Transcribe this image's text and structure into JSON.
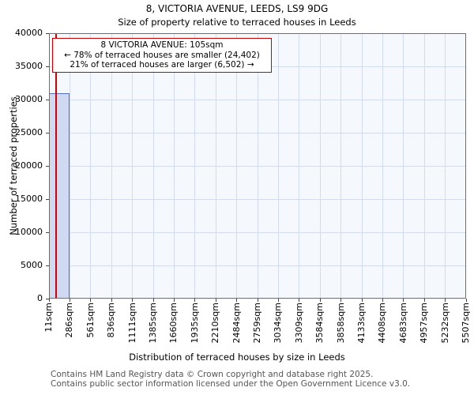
{
  "chart_data": {
    "type": "bar",
    "title": "8, VICTORIA AVENUE, LEEDS, LS9 9DG",
    "subtitle": "Size of property relative to terraced houses in Leeds",
    "xlabel": "Distribution of terraced houses by size in Leeds",
    "ylabel": "Number of terraced properties",
    "ylim": [
      0,
      40000
    ],
    "y_ticks": [
      0,
      5000,
      10000,
      15000,
      20000,
      25000,
      30000,
      35000,
      40000
    ],
    "x_range": [
      11,
      5507
    ],
    "x_tick_labels": [
      "11sqm",
      "286sqm",
      "561sqm",
      "836sqm",
      "1111sqm",
      "1385sqm",
      "1660sqm",
      "1935sqm",
      "2210sqm",
      "2484sqm",
      "2759sqm",
      "3034sqm",
      "3309sqm",
      "3584sqm",
      "3858sqm",
      "4133sqm",
      "4408sqm",
      "4683sqm",
      "4957sqm",
      "5232sqm",
      "5507sqm"
    ],
    "bin_width_sqm": 275,
    "bars": [
      {
        "bin_start": 11,
        "bin_end": 286,
        "value": 31000
      }
    ],
    "marker": {
      "value_sqm": 105,
      "color": "#d40000"
    },
    "annotation": {
      "line1": "8 VICTORIA AVENUE: 105sqm",
      "line2": "← 78% of terraced houses are smaller (24,402)",
      "line3": "21% of terraced houses are larger (6,502) →"
    },
    "smaller": {
      "percent": 78,
      "count": 24402
    },
    "larger": {
      "percent": 21,
      "count": 6502
    },
    "grid": true,
    "legend_position": "none",
    "colors": {
      "bar_fill": "#cfdaf2",
      "bar_edge": "#5471bc",
      "marker_line": "#d40000",
      "annotation_border": "#cc0000",
      "gridline": "#d3dcee",
      "plot_background": "#f5f8fd"
    }
  },
  "footer": {
    "line1": "Contains HM Land Registry data © Crown copyright and database right 2025.",
    "line2": "Contains public sector information licensed under the Open Government Licence v3.0."
  }
}
